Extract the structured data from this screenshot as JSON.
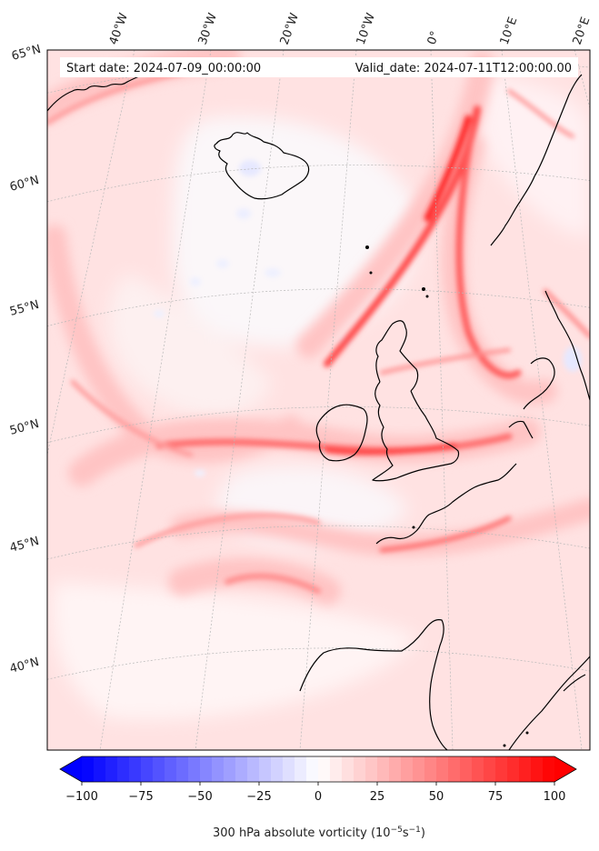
{
  "header": {
    "start_date": "Start date: 2024-07-09_00:00:00",
    "valid_date": "Valid_date: 2024-07-11T12:00:00.00"
  },
  "longitude_labels": [
    "40°W",
    "30°W",
    "20°W",
    "10°W",
    "0°",
    "10°E",
    "20°E"
  ],
  "latitude_labels": [
    "65°N",
    "60°N",
    "55°N",
    "50°N",
    "45°N",
    "40°N"
  ],
  "colorbar": {
    "label": "300 hPa absolute vorticity (10$^{-5}$s$^{-1}$)",
    "label_main": "300 hPa absolute vorticity (10",
    "label_exp1": "−5",
    "label_mid": "s",
    "label_exp2": "−1",
    "label_end": ")",
    "min": -100,
    "max": 100,
    "ticks": [
      "−100",
      "−75",
      "−50",
      "−25",
      "0",
      "25",
      "50",
      "75",
      "100"
    ],
    "tick_values": [
      -100,
      -75,
      -50,
      -25,
      0,
      25,
      50,
      75,
      100
    ],
    "color_low": "#0000ff",
    "color_mid": "#ffffff",
    "color_high": "#ff0000",
    "extend": "both"
  },
  "colors": {
    "background_field": "#ffe4e4",
    "coastline": "#000000",
    "gridline": "#b0b0b0"
  }
}
